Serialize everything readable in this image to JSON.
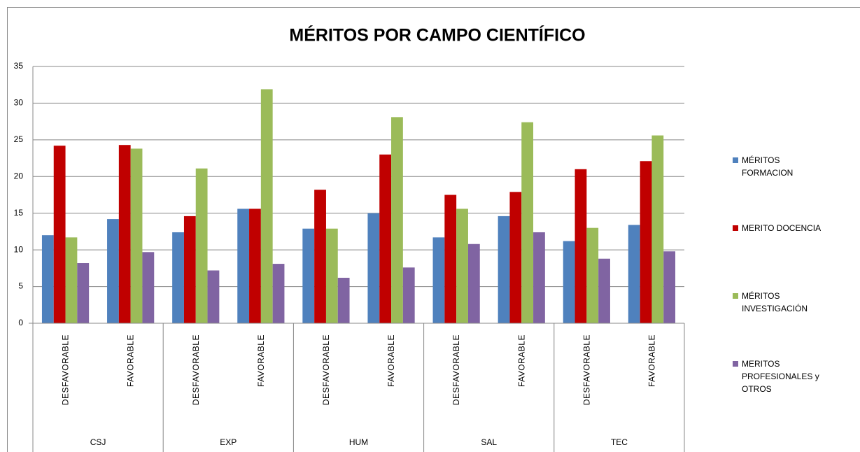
{
  "chart_data": {
    "type": "bar",
    "title": "MÉRITOS POR CAMPO CIENTÍFICO",
    "categories": [
      "DESFAVORABLE",
      "FAVORABLE",
      "DESFAVORABLE",
      "FAVORABLE",
      "DESFAVORABLE",
      "FAVORABLE",
      "DESFAVORABLE",
      "FAVORABLE",
      "DESFAVORABLE",
      "FAVORABLE"
    ],
    "groups": [
      "CSJ",
      "EXP",
      "HUM",
      "SAL",
      "TEC"
    ],
    "series": [
      {
        "name": "MÉRITOS FORMACION",
        "color": "#4f81bd",
        "values": [
          12.0,
          14.2,
          12.4,
          15.6,
          12.9,
          15.0,
          11.7,
          14.6,
          11.2,
          13.4
        ]
      },
      {
        "name": "MERITO DOCENCIA",
        "color": "#c00000",
        "values": [
          24.2,
          24.3,
          14.6,
          15.6,
          18.2,
          23.0,
          17.5,
          17.9,
          21.0,
          22.1
        ]
      },
      {
        "name": "MÉRITOS INVESTIGACIÓN",
        "color": "#9bbb59",
        "values": [
          11.7,
          23.8,
          21.1,
          31.9,
          12.9,
          28.1,
          15.6,
          27.4,
          13.0,
          25.6
        ]
      },
      {
        "name": "MERITOS PROFESIONALES y OTROS",
        "color": "#8064a2",
        "values": [
          8.2,
          9.7,
          7.2,
          8.1,
          6.2,
          7.6,
          10.8,
          12.4,
          8.8,
          9.8
        ]
      }
    ],
    "ylim": [
      0,
      35
    ],
    "yticks": [
      0,
      5,
      10,
      15,
      20,
      25,
      30,
      35
    ],
    "grid": true,
    "legend": "right"
  }
}
